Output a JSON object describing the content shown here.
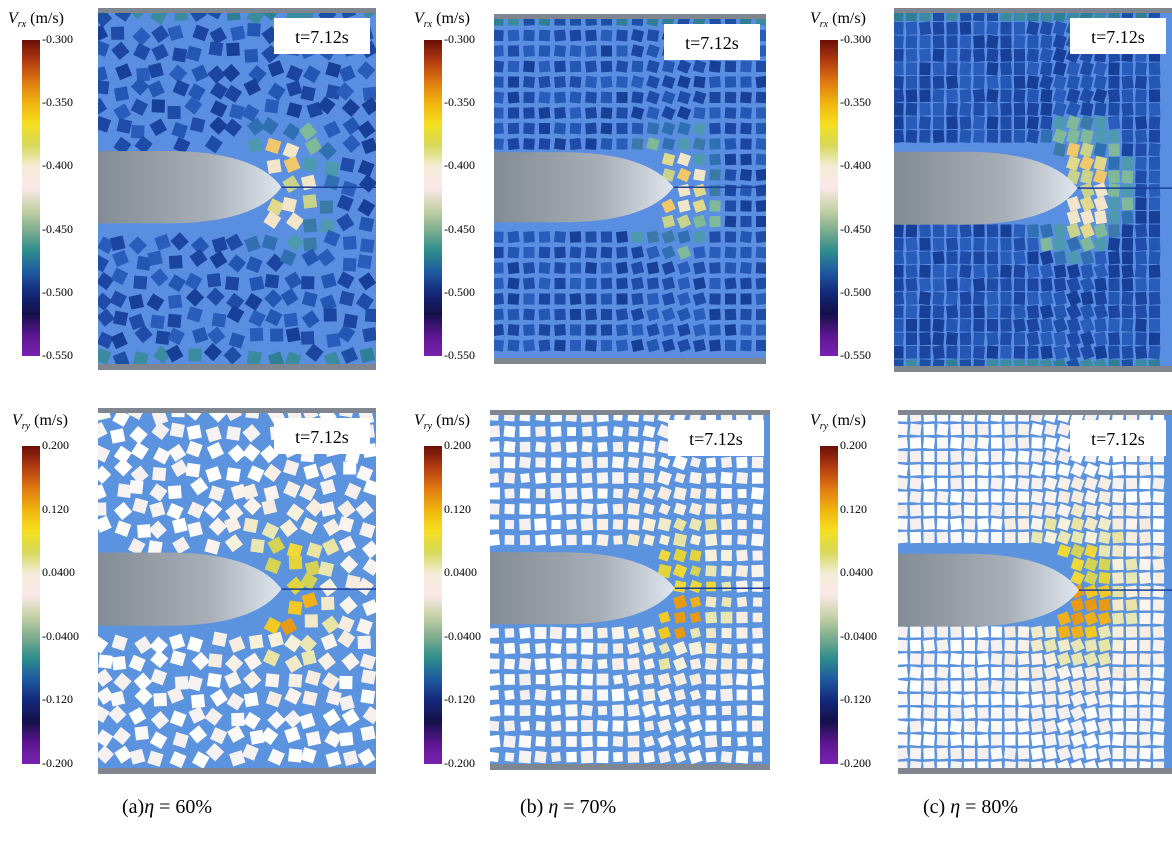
{
  "time_label": "t=7.12s",
  "unit": "(m/s)",
  "rows": [
    {
      "var_main": "V",
      "var_sub": "rx",
      "ticks": [
        "-0.300",
        "-0.350",
        "-0.400",
        "-0.450",
        "-0.500",
        "-0.550"
      ],
      "colormap": "rx"
    },
    {
      "var_main": "V",
      "var_sub": "ry",
      "ticks": [
        "0.200",
        "0.120",
        "0.0400",
        "-0.0400",
        "-0.120",
        "-0.200"
      ],
      "colormap": "ry"
    }
  ],
  "columns": [
    {
      "caption_prefix": "(a)",
      "eta_symbol": "η",
      "eta_value": "= 60%",
      "packing": "random"
    },
    {
      "caption_prefix": "(b)",
      "eta_symbol": "η",
      "eta_value": "= 70%",
      "packing": "grid"
    },
    {
      "caption_prefix": "(c)",
      "eta_symbol": "η",
      "eta_value": "= 80%",
      "packing": "dense"
    }
  ],
  "colors": {
    "background_rx": "#5a8ee0",
    "background_ry": "#5b93df",
    "tool": "#8a929c",
    "wall": "#7f8690"
  }
}
